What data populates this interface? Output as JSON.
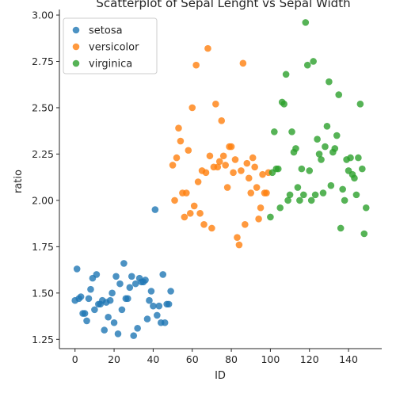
{
  "chart_data": {
    "type": "scatter",
    "title": "Scatterplot of Sepal Lenght vs Sepal Width",
    "xlabel": "ID",
    "ylabel": "ratio",
    "xlim": [
      -8,
      157
    ],
    "ylim": [
      1.2,
      3.03
    ],
    "xticks": [
      0,
      20,
      40,
      60,
      80,
      100,
      120,
      140
    ],
    "yticks": [
      1.25,
      1.5,
      1.75,
      2.0,
      2.25,
      2.5,
      2.75,
      3.0
    ],
    "ytick_labels": [
      "1.25",
      "1.50",
      "1.75",
      "2.00",
      "2.25",
      "2.50",
      "2.75",
      "3.00"
    ],
    "grid": false,
    "legend_position": "top-left",
    "series": [
      {
        "name": "setosa",
        "color": "#1f77b4",
        "x": [
          0,
          1,
          2,
          3,
          4,
          5,
          6,
          7,
          8,
          9,
          10,
          11,
          12,
          13,
          14,
          15,
          16,
          17,
          18,
          19,
          20,
          21,
          22,
          23,
          24,
          25,
          26,
          27,
          28,
          29,
          30,
          31,
          32,
          33,
          34,
          35,
          36,
          37,
          38,
          39,
          40,
          41,
          42,
          43,
          44,
          45,
          46,
          47,
          48,
          49
        ],
        "y": [
          1.46,
          1.63,
          1.47,
          1.48,
          1.39,
          1.39,
          1.35,
          1.47,
          1.52,
          1.58,
          1.41,
          1.6,
          1.44,
          1.44,
          1.46,
          1.3,
          1.45,
          1.37,
          1.46,
          1.5,
          1.34,
          1.59,
          1.28,
          1.55,
          1.41,
          1.66,
          1.47,
          1.47,
          1.53,
          1.59,
          1.27,
          1.55,
          1.31,
          1.58,
          1.56,
          1.56,
          1.57,
          1.36,
          1.46,
          1.51,
          1.43,
          1.95,
          1.38,
          1.43,
          1.34,
          1.6,
          1.34,
          1.44,
          1.44,
          1.51
        ]
      },
      {
        "name": "versicolor",
        "color": "#ff7f0e",
        "x": [
          50,
          51,
          52,
          53,
          54,
          55,
          56,
          57,
          58,
          59,
          60,
          61,
          62,
          63,
          64,
          65,
          66,
          67,
          68,
          69,
          70,
          71,
          72,
          73,
          74,
          75,
          76,
          77,
          78,
          79,
          80,
          81,
          82,
          83,
          84,
          85,
          86,
          87,
          88,
          89,
          90,
          91,
          92,
          93,
          94,
          95,
          96,
          97,
          98,
          99
        ],
        "y": [
          2.19,
          2.0,
          2.23,
          2.39,
          2.32,
          2.04,
          1.91,
          2.04,
          2.27,
          1.93,
          2.5,
          1.97,
          2.73,
          2.1,
          1.93,
          2.16,
          1.87,
          2.15,
          2.82,
          2.24,
          1.85,
          2.18,
          2.52,
          2.18,
          2.21,
          2.43,
          2.24,
          2.19,
          2.07,
          2.29,
          2.29,
          2.15,
          2.22,
          1.8,
          1.76,
          2.16,
          2.74,
          1.87,
          2.2,
          2.12,
          2.04,
          2.23,
          2.18,
          2.07,
          1.9,
          1.96,
          2.14,
          2.04,
          2.04,
          2.15
        ]
      },
      {
        "name": "virginica",
        "color": "#2ca02c",
        "x": [
          100,
          101,
          102,
          103,
          104,
          105,
          106,
          107,
          108,
          109,
          110,
          111,
          112,
          113,
          114,
          115,
          116,
          117,
          118,
          119,
          120,
          121,
          122,
          123,
          124,
          125,
          126,
          127,
          128,
          129,
          130,
          131,
          132,
          133,
          134,
          135,
          136,
          137,
          138,
          139,
          140,
          141,
          142,
          143,
          144,
          145,
          146,
          147,
          148,
          149
        ],
        "y": [
          1.91,
          2.15,
          2.37,
          2.17,
          2.17,
          1.96,
          2.53,
          2.52,
          2.68,
          2.0,
          2.03,
          2.37,
          2.26,
          2.28,
          2.07,
          2.0,
          2.17,
          2.03,
          2.96,
          2.73,
          2.16,
          2.0,
          2.75,
          2.03,
          2.33,
          2.25,
          2.22,
          2.04,
          2.29,
          2.4,
          2.64,
          2.08,
          2.26,
          2.28,
          2.35,
          2.57,
          1.85,
          2.06,
          2.0,
          2.22,
          2.16,
          2.23,
          2.14,
          2.12,
          2.03,
          2.23,
          2.52,
          2.17,
          1.82,
          1.96
        ]
      }
    ]
  }
}
